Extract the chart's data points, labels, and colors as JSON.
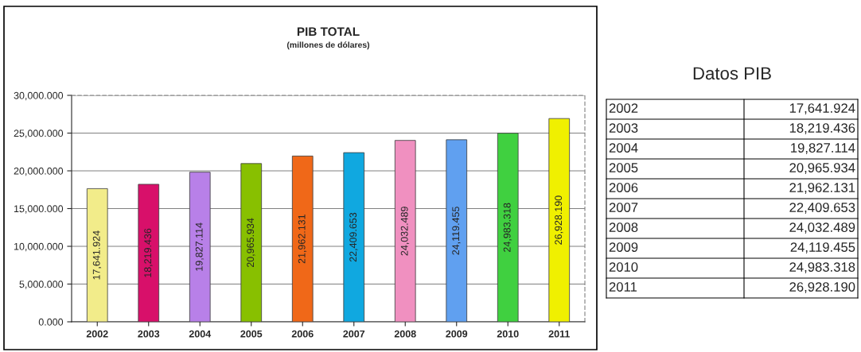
{
  "chart_data": {
    "type": "bar",
    "title": "PIB TOTAL",
    "subtitle": "(millones de dólares)",
    "categories": [
      "2002",
      "2003",
      "2004",
      "2005",
      "2006",
      "2007",
      "2008",
      "2009",
      "2010",
      "2011"
    ],
    "values": [
      17641.924,
      18219.436,
      19827.114,
      20965.934,
      21962.131,
      22409.653,
      24032.489,
      24119.455,
      24983.318,
      26928.19
    ],
    "colors": [
      "#f2ec8a",
      "#d8106a",
      "#b880e8",
      "#88c000",
      "#f06818",
      "#10a8e0",
      "#f090c0",
      "#60a0f0",
      "#40d040",
      "#f0f000"
    ],
    "value_labels": [
      "17,641.924",
      "18,219.436",
      "19,827.114",
      "20,965.934",
      "21,962.131",
      "22,409.653",
      "24,032.489",
      "24,119.455",
      "24,983.318",
      "26,928.190"
    ],
    "ylim": [
      0,
      30000
    ],
    "yticks": [
      {
        "value": 0,
        "label": "0.000"
      },
      {
        "value": 5000,
        "label": "5,000.000"
      },
      {
        "value": 10000,
        "label": "10,000.000"
      },
      {
        "value": 15000,
        "label": "15,000.000"
      },
      {
        "value": 20000,
        "label": "20,000.000"
      },
      {
        "value": 25000,
        "label": "25,000.000"
      },
      {
        "value": 30000,
        "label": "30,000.000"
      }
    ],
    "grid": "y",
    "annotations": [
      "Datos PIB"
    ]
  }
}
